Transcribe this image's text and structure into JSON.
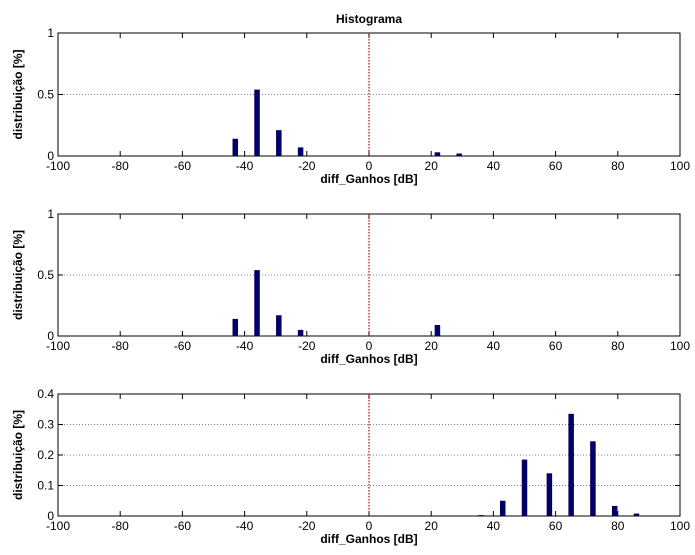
{
  "chart_data": [
    {
      "type": "bar",
      "title": "Histograma",
      "xlabel": "diff_Ganhos [dB]",
      "ylabel": "distribuição [%]",
      "xlim": [
        -100,
        100
      ],
      "ylim": [
        0,
        1
      ],
      "xticks": [
        "-100",
        "-80",
        "-60",
        "-40",
        "-20",
        "0",
        "20",
        "40",
        "60",
        "80",
        "100"
      ],
      "yticks": [
        "0",
        "0.5",
        "1"
      ],
      "grid": "horizontal dotted",
      "reference_line_x": 0,
      "colors": {
        "bar": "#000066",
        "reference": "#cc0000"
      },
      "x": [
        -43,
        -36,
        -29,
        -22,
        22,
        29
      ],
      "values": [
        0.14,
        0.54,
        0.21,
        0.07,
        0.03,
        0.02
      ]
    },
    {
      "type": "bar",
      "title": "",
      "xlabel": "diff_Ganhos [dB]",
      "ylabel": "distribuição [%]",
      "xlim": [
        -100,
        100
      ],
      "ylim": [
        0,
        1
      ],
      "xticks": [
        "-100",
        "-80",
        "-60",
        "-40",
        "-20",
        "0",
        "20",
        "40",
        "60",
        "80",
        "100"
      ],
      "yticks": [
        "0",
        "0.5",
        "1"
      ],
      "grid": "horizontal dotted",
      "reference_line_x": 0,
      "colors": {
        "bar": "#000066",
        "reference": "#cc0000"
      },
      "x": [
        -43,
        -36,
        -29,
        -22,
        22
      ],
      "values": [
        0.14,
        0.54,
        0.17,
        0.05,
        0.09
      ]
    },
    {
      "type": "bar",
      "title": "",
      "xlabel": "diff_Ganhos [dB]",
      "ylabel": "distribuição [%]",
      "xlim": [
        -100,
        100
      ],
      "ylim": [
        0,
        0.4
      ],
      "xticks": [
        "-100",
        "-80",
        "-60",
        "-40",
        "-20",
        "0",
        "20",
        "40",
        "60",
        "80",
        "100"
      ],
      "yticks": [
        "0",
        "0.1",
        "0.2",
        "0.3",
        "0.4"
      ],
      "grid": "horizontal dotted",
      "reference_line_x": 0,
      "colors": {
        "bar": "#000066",
        "reference": "#cc0000"
      },
      "x": [
        36,
        43,
        50,
        58,
        65,
        72,
        79,
        86
      ],
      "values": [
        0.003,
        0.05,
        0.185,
        0.14,
        0.335,
        0.245,
        0.033,
        0.008
      ]
    }
  ]
}
